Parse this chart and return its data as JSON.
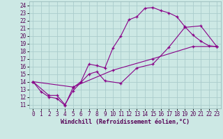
{
  "xlabel": "Windchill (Refroidissement éolien,°C)",
  "bg_color": "#cce8e4",
  "line_color": "#880088",
  "grid_color": "#aacccc",
  "xlim": [
    -0.5,
    23.5
  ],
  "ylim": [
    10.5,
    24.5
  ],
  "xticks": [
    0,
    1,
    2,
    3,
    4,
    5,
    6,
    7,
    8,
    9,
    10,
    11,
    12,
    13,
    14,
    15,
    16,
    17,
    18,
    19,
    20,
    21,
    22,
    23
  ],
  "yticks": [
    11,
    12,
    13,
    14,
    15,
    16,
    17,
    18,
    19,
    20,
    21,
    22,
    23,
    24
  ],
  "line1_x": [
    0,
    1,
    2,
    3,
    4,
    5,
    6,
    7,
    8,
    9,
    10,
    11,
    12,
    13,
    14,
    15,
    16,
    17,
    18,
    19,
    20,
    21,
    22,
    23
  ],
  "line1_y": [
    14.0,
    12.7,
    12.0,
    11.8,
    10.9,
    13.2,
    14.0,
    16.3,
    16.1,
    15.8,
    18.4,
    20.0,
    22.1,
    22.5,
    23.6,
    23.7,
    23.3,
    23.0,
    22.5,
    21.2,
    20.1,
    19.3,
    18.7,
    18.6
  ],
  "line2_x": [
    0,
    2,
    3,
    4,
    5,
    7,
    8,
    9,
    11,
    13,
    15,
    17,
    19,
    21,
    23
  ],
  "line2_y": [
    14.0,
    12.2,
    12.2,
    11.0,
    12.8,
    15.0,
    15.3,
    14.1,
    13.8,
    15.8,
    16.3,
    18.5,
    21.1,
    21.3,
    18.6
  ],
  "line3_x": [
    0,
    5,
    10,
    15,
    20,
    23
  ],
  "line3_y": [
    14.0,
    13.3,
    15.5,
    17.0,
    18.6,
    18.6
  ],
  "tick_fontsize": 5.5,
  "xlabel_fontsize": 6.0
}
